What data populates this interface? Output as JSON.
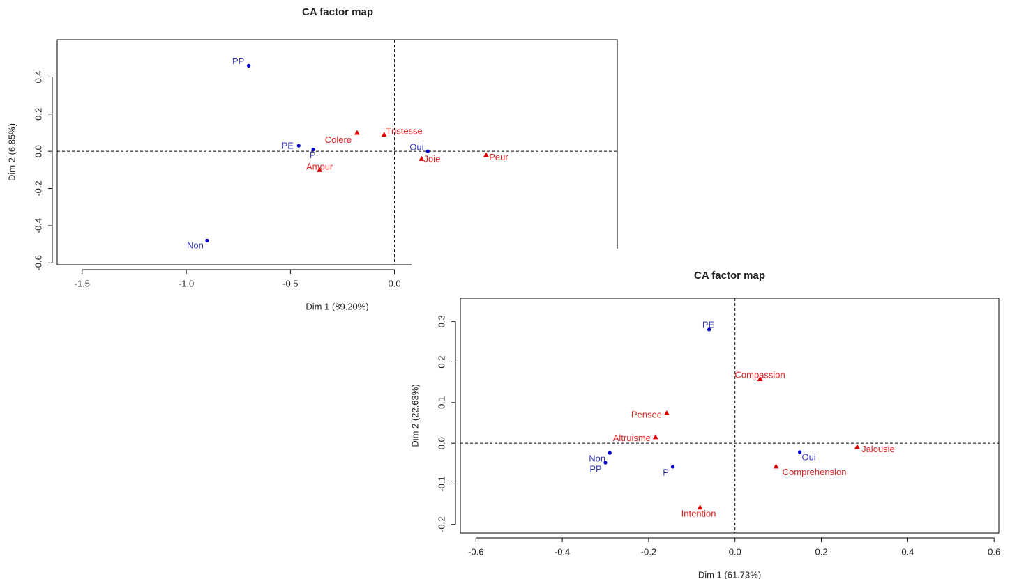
{
  "chart_data": [
    {
      "type": "scatter",
      "title": "CA factor map",
      "xlabel": "Dim 1 (89.20%)",
      "ylabel": "Dim 2 (6.85%)",
      "xlim": [
        -1.62,
        1.07
      ],
      "ylim": [
        -0.61,
        0.6
      ],
      "xticks": [
        -1.5,
        {
          "value": -1,
          "label": "-1.0"
        },
        -0.5,
        {
          "value": 0,
          "label": "0.0"
        }
      ],
      "yticks": [
        -0.6,
        -0.4,
        -0.2,
        {
          "value": 0,
          "label": "0.0"
        },
        0.2,
        0.4
      ],
      "zero_lines": true,
      "series": [
        {
          "color": "#0000cc",
          "marker": "circle",
          "labels_color": "#3333bb",
          "labels": [
            "PP",
            "PE",
            "P",
            "Oui",
            "Non"
          ],
          "x": [
            -0.7,
            -0.46,
            -0.39,
            0.16,
            -0.9
          ],
          "values": [
            0.46,
            0.03,
            0.01,
            0.0,
            -0.48
          ]
        },
        {
          "color": "#dd0000",
          "marker": "triangle",
          "labels_color": "#dd2222",
          "labels": [
            "Tristesse",
            "Colere",
            "Amour",
            "Joie",
            "Peur"
          ],
          "x": [
            -0.05,
            -0.18,
            -0.36,
            0.13,
            0.44
          ],
          "values": [
            0.09,
            0.1,
            -0.1,
            -0.04,
            -0.02
          ]
        }
      ]
    },
    {
      "type": "scatter",
      "title": "CA factor map",
      "xlabel": "Dim 1 (61.73%)",
      "ylabel": "Dim 2 (22.63%)",
      "xlim": [
        -0.636,
        0.611
      ],
      "ylim": [
        -0.221,
        0.357
      ],
      "xticks": [
        -0.6,
        -0.4,
        -0.2,
        {
          "value": 0,
          "label": "0.0"
        },
        0.2,
        0.4,
        0.6
      ],
      "yticks": [
        -0.2,
        -0.1,
        {
          "value": 0,
          "label": "0.0"
        },
        0.1,
        0.2,
        0.3
      ],
      "zero_lines": true,
      "series": [
        {
          "color": "#0000cc",
          "marker": "circle",
          "labels_color": "#3333bb",
          "labels": [
            "PE",
            "Non",
            "PP",
            "P",
            "Oui"
          ],
          "x": [
            -0.06,
            -0.29,
            -0.3,
            -0.144,
            0.15
          ],
          "values": [
            0.28,
            -0.024,
            -0.048,
            -0.058,
            -0.022
          ]
        },
        {
          "color": "#dd0000",
          "marker": "triangle",
          "labels_color": "#dd2222",
          "labels": [
            "Compassion",
            "Pensee",
            "Altruisme",
            "Jalousie",
            "Comprehension",
            "Intention"
          ],
          "x": [
            0.058,
            -0.158,
            -0.184,
            0.283,
            0.095,
            -0.081
          ],
          "values": [
            0.158,
            0.074,
            0.015,
            -0.009,
            -0.057,
            -0.158
          ]
        }
      ]
    }
  ]
}
